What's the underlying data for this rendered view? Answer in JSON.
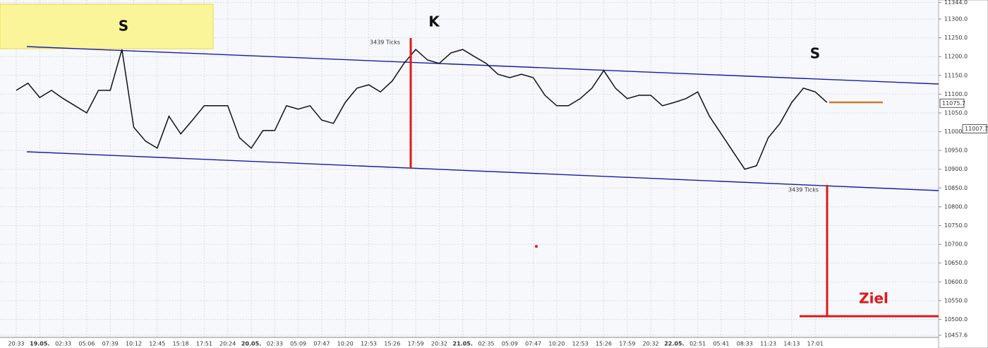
{
  "chart_data": {
    "type": "line",
    "categories": [
      "20:33",
      null,
      "19.05.",
      null,
      "02:33",
      null,
      "05:06",
      null,
      "07:39",
      null,
      "10:12",
      null,
      "12:45",
      null,
      "15:18",
      null,
      "17:51",
      null,
      "20:24",
      null,
      "20.05.",
      null,
      "02:33",
      null,
      "05:09",
      null,
      "07:47",
      null,
      "10:20",
      null,
      "12:53",
      null,
      "15:26",
      null,
      "17:59",
      null,
      "20:32",
      null,
      "21.05.",
      null,
      "02:35",
      null,
      "05:09",
      null,
      "07:47",
      null,
      "10:20",
      null,
      "12:53",
      null,
      "15:26",
      null,
      "17:59",
      null,
      "20:32",
      null,
      "22.05.",
      null,
      "02:51",
      null,
      "05:41",
      null,
      "08:33",
      null,
      "11:23",
      null,
      "14:13",
      null,
      "17:01",
      null
    ],
    "values": [
      11110,
      11129,
      11091,
      11110,
      11088,
      11069,
      11050,
      11110,
      11110,
      11219,
      11012,
      10975,
      10956,
      11041,
      10994,
      11031,
      11069,
      11069,
      11069,
      10984,
      10956,
      11003,
      11003,
      11069,
      11060,
      11069,
      11031,
      11022,
      11078,
      11116,
      11125,
      11106,
      11135,
      11182,
      11219,
      11191,
      11182,
      11210,
      11219,
      11200,
      11182,
      11153,
      11144,
      11153,
      11144,
      11097,
      11069,
      11069,
      11088,
      11116,
      11163,
      11116,
      11088,
      11097,
      11097,
      11069,
      11078,
      11088,
      11106,
      11041,
      10994,
      10947,
      10900,
      10909,
      10984,
      11022,
      11078,
      11116,
      11106,
      11078
    ],
    "color": "#111111",
    "ylim": [
      10457.6,
      11344.0
    ],
    "yticks": [
      {
        "value": 10457.6,
        "label": "10457.6"
      },
      {
        "value": 10500,
        "label": "10500.0"
      },
      {
        "value": 10550,
        "label": "10550.0"
      },
      {
        "value": 10600,
        "label": "10600.0"
      },
      {
        "value": 10650,
        "label": "10650.0"
      },
      {
        "value": 10700,
        "label": "10700.0"
      },
      {
        "value": 10750,
        "label": "10750.0"
      },
      {
        "value": 10800,
        "label": "10800.0"
      },
      {
        "value": 10850,
        "label": "10850.0"
      },
      {
        "value": 10900,
        "label": "10900.0"
      },
      {
        "value": 10950,
        "label": "10950.0"
      },
      {
        "value": 11000,
        "label": "11000.0"
      },
      {
        "value": 11050,
        "label": "11050.0"
      },
      {
        "value": 11100,
        "label": "11100.0"
      },
      {
        "value": 11150,
        "label": "11150.0"
      },
      {
        "value": 11200,
        "label": "11200.0"
      },
      {
        "value": 11250,
        "label": "11250.0"
      },
      {
        "value": 11300,
        "label": "11300.0"
      },
      {
        "value": 11344.0,
        "label": "11344.0"
      }
    ],
    "price_markers": [
      11075.7,
      11007.7
    ],
    "grid": true,
    "annotations": [
      "S",
      "K",
      "S",
      "Ziel",
      "3439 Ticks",
      "3439 Ticks"
    ]
  }
}
